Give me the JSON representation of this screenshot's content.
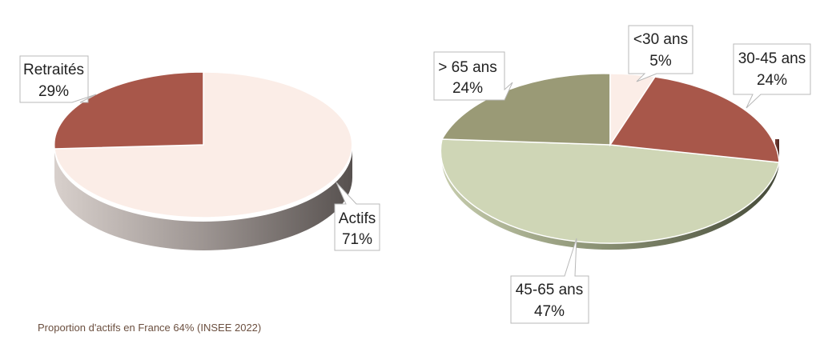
{
  "chart_data": [
    {
      "type": "pie",
      "slices": [
        {
          "label": "Actifs",
          "percent": "71%",
          "value": 71,
          "color": "#fbede7"
        },
        {
          "label": "Retraités",
          "percent": "29%",
          "value": 29,
          "color": "#a8574a"
        }
      ],
      "legend": "none"
    },
    {
      "type": "pie",
      "slices": [
        {
          "label": "<30 ans",
          "percent": "5%",
          "value": 5,
          "color": "#fbede7"
        },
        {
          "label": "30-45 ans",
          "percent": "24%",
          "value": 24,
          "color": "#a8574a"
        },
        {
          "label": "45-65 ans",
          "percent": "47%",
          "value": 47,
          "color": "#cfd6b6"
        },
        {
          "label": "> 65 ans",
          "percent": "24%",
          "value": 24,
          "color": "#9a9a76"
        }
      ],
      "legend": "none"
    }
  ],
  "footnote": "Proportion d'actifs en France 64% (INSEE 2022)"
}
